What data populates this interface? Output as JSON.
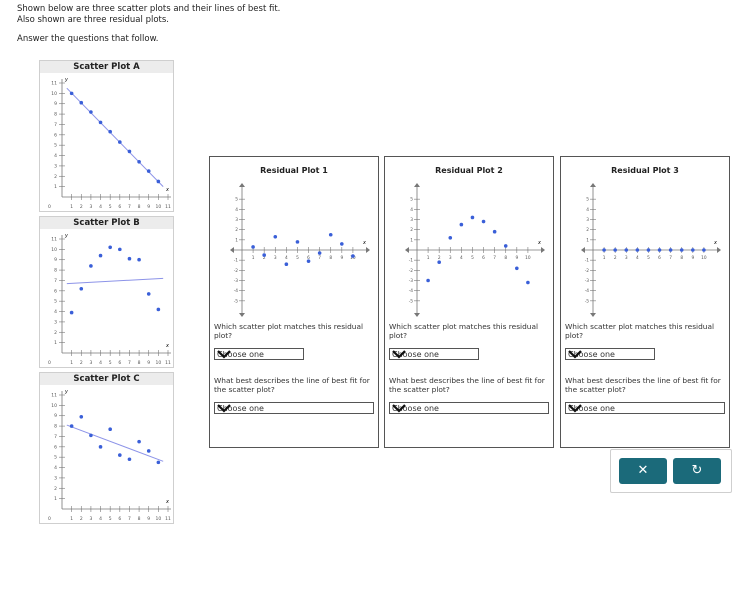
{
  "intro": {
    "line1": "Shown below are three scatter plots and their lines of best fit.",
    "line2": "Also shown are three residual plots.",
    "line3": "Answer the questions that follow."
  },
  "scatter_plots": [
    {
      "title": "Scatter Plot A"
    },
    {
      "title": "Scatter Plot B"
    },
    {
      "title": "Scatter Plot C"
    }
  ],
  "residual_plots": [
    {
      "title": "Residual Plot 1",
      "q1": "Which scatter plot matches this residual plot?",
      "q1_value": "Choose one",
      "q2": "What best describes the line of best fit for the scatter plot?",
      "q2_value": "Choose one"
    },
    {
      "title": "Residual Plot 2",
      "q1": "Which scatter plot matches this residual plot?",
      "q1_value": "Choose one",
      "q2": "What best describes the line of best fit for the scatter plot?",
      "q2_value": "Choose one"
    },
    {
      "title": "Residual Plot 3",
      "q1": "Which scatter plot matches this residual plot?",
      "q1_value": "Choose one",
      "q2": "What best describes the line of best fit for the scatter plot?",
      "q2_value": "Choose one"
    }
  ],
  "actions": {
    "clear_label": "✕",
    "reset_label": "↻"
  },
  "colors": {
    "point": "#3a5fd8",
    "line": "#8c93e8",
    "button": "#1b6a7a"
  },
  "chart_data": [
    {
      "type": "scatter",
      "title": "Scatter Plot A",
      "xlabel": "x",
      "ylabel": "y",
      "xlim": [
        0,
        11
      ],
      "ylim": [
        0,
        11
      ],
      "x": [
        1,
        2,
        3,
        4,
        5,
        6,
        7,
        8,
        9,
        10
      ],
      "y": [
        10,
        9.1,
        8.2,
        7.2,
        6.3,
        5.3,
        4.4,
        3.4,
        2.5,
        1.5
      ],
      "fit_line": {
        "x": [
          0.5,
          10.5
        ],
        "y": [
          10.5,
          1
        ]
      }
    },
    {
      "type": "scatter",
      "title": "Scatter Plot B",
      "xlabel": "x",
      "ylabel": "y",
      "xlim": [
        0,
        11
      ],
      "ylim": [
        0,
        11
      ],
      "x": [
        1,
        2,
        3,
        4,
        5,
        6,
        7,
        8,
        9,
        10
      ],
      "y": [
        3.9,
        6.2,
        8.4,
        9.4,
        10.2,
        10,
        9.1,
        9,
        5.7,
        4.2
      ],
      "fit_line": {
        "x": [
          0.5,
          10.5
        ],
        "y": [
          6.7,
          7.2
        ]
      }
    },
    {
      "type": "scatter",
      "title": "Scatter Plot C",
      "xlabel": "x",
      "ylabel": "y",
      "xlim": [
        0,
        11
      ],
      "ylim": [
        0,
        11
      ],
      "x": [
        1,
        2,
        3,
        4,
        5,
        6,
        7,
        8,
        9,
        10
      ],
      "y": [
        8,
        8.9,
        7.1,
        6,
        7.7,
        5.2,
        4.8,
        6.5,
        5.6,
        4.5
      ],
      "fit_line": {
        "x": [
          0.5,
          10.5
        ],
        "y": [
          8.1,
          4.6
        ]
      }
    },
    {
      "type": "scatter",
      "title": "Residual Plot 1",
      "xlabel": "x",
      "xlim": [
        0,
        11
      ],
      "ylim": [
        -6,
        6
      ],
      "x": [
        1,
        2,
        3,
        4,
        5,
        6,
        7,
        8,
        9,
        10
      ],
      "y": [
        0.3,
        -0.5,
        1.3,
        -1.4,
        0.8,
        -1.1,
        -0.3,
        1.5,
        0.6,
        -0.6
      ]
    },
    {
      "type": "scatter",
      "title": "Residual Plot 2",
      "xlabel": "x",
      "xlim": [
        0,
        11
      ],
      "ylim": [
        -6,
        6
      ],
      "x": [
        1,
        2,
        3,
        4,
        5,
        6,
        7,
        8,
        9,
        10
      ],
      "y": [
        -3,
        -1.2,
        1.2,
        2.5,
        3.2,
        2.8,
        1.8,
        0.4,
        -1.8,
        -3.2
      ]
    },
    {
      "type": "scatter",
      "title": "Residual Plot 3",
      "xlabel": "x",
      "xlim": [
        0,
        11
      ],
      "ylim": [
        -6,
        6
      ],
      "x": [
        1,
        2,
        3,
        4,
        5,
        6,
        7,
        8,
        9,
        10
      ],
      "y": [
        0,
        0,
        0,
        0,
        0,
        0,
        0,
        0,
        0,
        0
      ]
    }
  ]
}
